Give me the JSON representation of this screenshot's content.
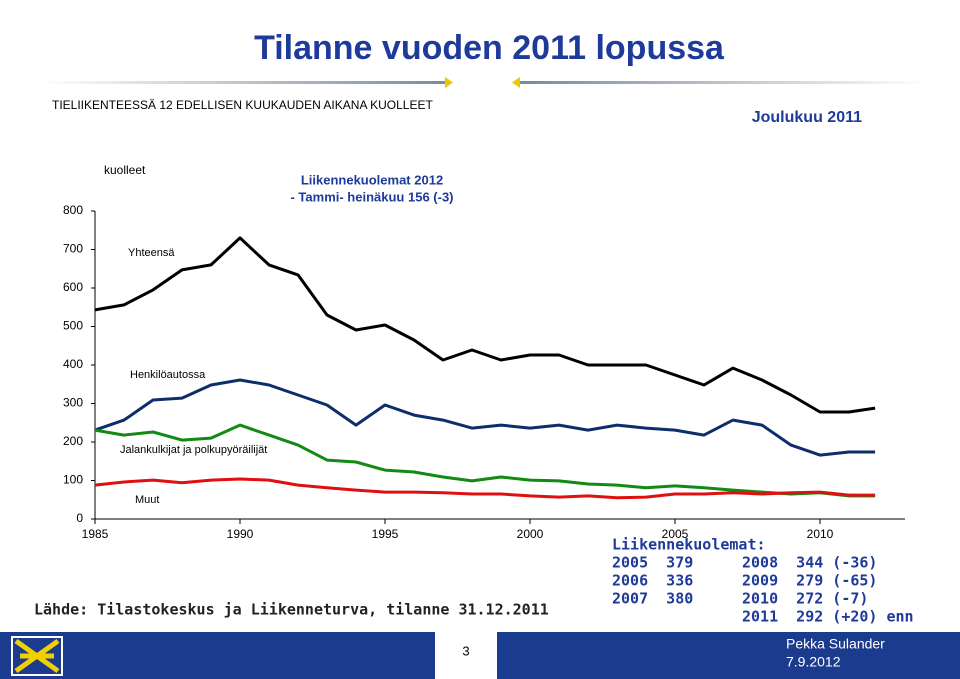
{
  "chart_data": {
    "type": "line",
    "title": "Tilanne vuoden 2011 lopussa",
    "subtitle": "TIELIIKENTEESSÄ 12 EDELLISEN KUUKAUDEN AIKANA KUOLLEET",
    "period": "Joulukuu 2011",
    "y_label": "kuolleet",
    "annotations": [
      "Liikennekuolemat 2012",
      "- Tammi- heinäkuu 156 (-3)"
    ],
    "x": [
      1985,
      1986,
      1987,
      1988,
      1989,
      1990,
      1991,
      1992,
      1993,
      1994,
      1995,
      1996,
      1997,
      1998,
      1999,
      2000,
      2001,
      2002,
      2003,
      2004,
      2005,
      2006,
      2007,
      2008,
      2009,
      2010,
      2011,
      2011.9
    ],
    "series": [
      {
        "name": "Yhteensä",
        "color": "#000000",
        "values": [
          543,
          556,
          595,
          647,
          660,
          730,
          660,
          634,
          530,
          491,
          504,
          465,
          413,
          439,
          413,
          426,
          426,
          400,
          400,
          400,
          374,
          348,
          392,
          361,
          322,
          278,
          278,
          288
        ]
      },
      {
        "name": "Henkilöautossa",
        "color": "#0d2d6b",
        "values": [
          231,
          257,
          309,
          314,
          348,
          361,
          348,
          322,
          296,
          244,
          296,
          270,
          257,
          236,
          244,
          236,
          244,
          231,
          244,
          236,
          231,
          218,
          257,
          244,
          192,
          166,
          174,
          174
        ]
      },
      {
        "name": "Jalankulkijat ja polkupyöräilijät",
        "color": "#138a13",
        "values": [
          231,
          218,
          226,
          205,
          210,
          244,
          218,
          192,
          153,
          148,
          127,
          122,
          109,
          99,
          109,
          101,
          99,
          91,
          88,
          81,
          86,
          81,
          75,
          70,
          65,
          68,
          60,
          60
        ]
      },
      {
        "name": "Muut",
        "color": "#e01010",
        "values": [
          88,
          96,
          101,
          94,
          101,
          104,
          101,
          88,
          81,
          75,
          70,
          70,
          68,
          65,
          65,
          60,
          57,
          60,
          55,
          57,
          65,
          65,
          68,
          65,
          68,
          70,
          62,
          62
        ]
      }
    ],
    "xlim": [
      1985,
      2012
    ],
    "xticks": [
      1985,
      1990,
      1995,
      2000,
      2005,
      2010
    ],
    "ylim": [
      0,
      800
    ],
    "yticks": [
      0,
      100,
      200,
      300,
      400,
      500,
      600,
      700,
      800
    ],
    "source": "Lähde: Tilastokeskus ja Liikenneturva, tilanne 31.12.2011",
    "stats": {
      "title": "Liikennekuolemat:",
      "left": [
        "2005  379",
        "2006  336",
        "2007  380"
      ],
      "right": [
        "2008  344 (-36)",
        "2009  279 (-65)",
        "2010  272 (-7)",
        "2011  292 (+20) enn"
      ]
    },
    "footer": {
      "page": "3",
      "author": "Pekka Sulander",
      "date": "7.9.2012"
    }
  }
}
